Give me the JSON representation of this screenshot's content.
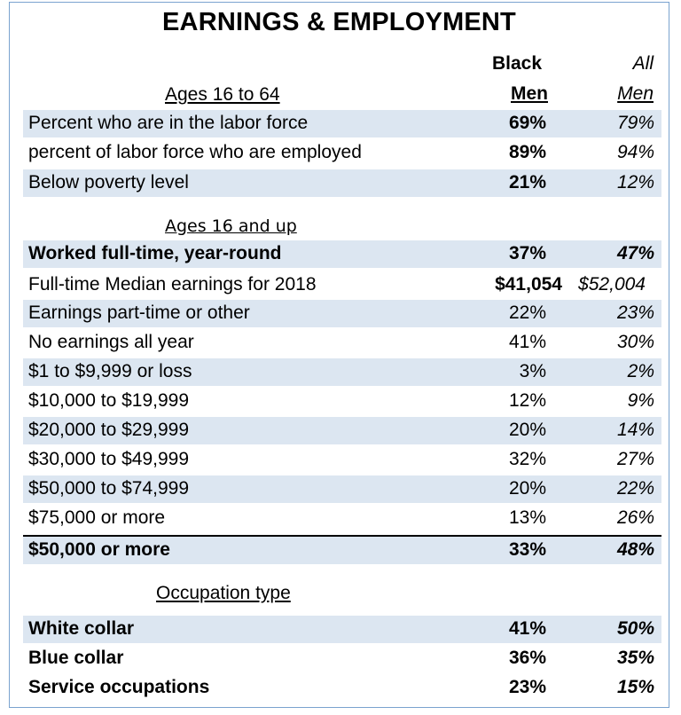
{
  "title": "EARNINGS & EMPLOYMENT",
  "headers": {
    "col1_line1": "Black",
    "col1_line2": "Men",
    "col2_line1": "All",
    "col2_line2": "Men"
  },
  "sections": {
    "ages_16_64": "Ages 16 to 64",
    "ages_16_up": "Ages 16 and up",
    "occupation": "Occupation type"
  },
  "rows": [
    {
      "label": "Percent who are in the labor force",
      "black": "69%",
      "all": "79%"
    },
    {
      "label": "percent of labor force who are employed",
      "black": "89%",
      "all": "94%"
    },
    {
      "label": "Below poverty level",
      "black": "21%",
      "all": "12%"
    },
    {
      "label": "Worked full-time, year-round",
      "black": "37%",
      "all": "47%"
    },
    {
      "label": "Full-time Median earnings for 2018",
      "black": "$41,054",
      "all": "$52,004"
    },
    {
      "label": "Earnings part-time or other",
      "black": "22%",
      "all": "23%"
    },
    {
      "label": "No earnings all year",
      "black": "41%",
      "all": "30%"
    },
    {
      "label": "$1 to $9,999 or loss",
      "black": "3%",
      "all": "2%"
    },
    {
      "label": "$10,000 to $19,999",
      "black": "12%",
      "all": "9%"
    },
    {
      "label": "$20,000 to $29,999",
      "black": "20%",
      "all": "14%"
    },
    {
      "label": "$30,000 to $49,999",
      "black": "32%",
      "all": "27%"
    },
    {
      "label": "$50,000 to $74,999",
      "black": "20%",
      "all": "22%"
    },
    {
      "label": "$75,000 or more",
      "black": "13%",
      "all": "26%"
    },
    {
      "label": "$50,000 or more",
      "black": "33%",
      "all": "48%"
    },
    {
      "label": "White collar",
      "black": "41%",
      "all": "50%"
    },
    {
      "label": "Blue collar",
      "black": "36%",
      "all": "35%"
    },
    {
      "label": "Service occupations",
      "black": "23%",
      "all": "15%"
    }
  ]
}
